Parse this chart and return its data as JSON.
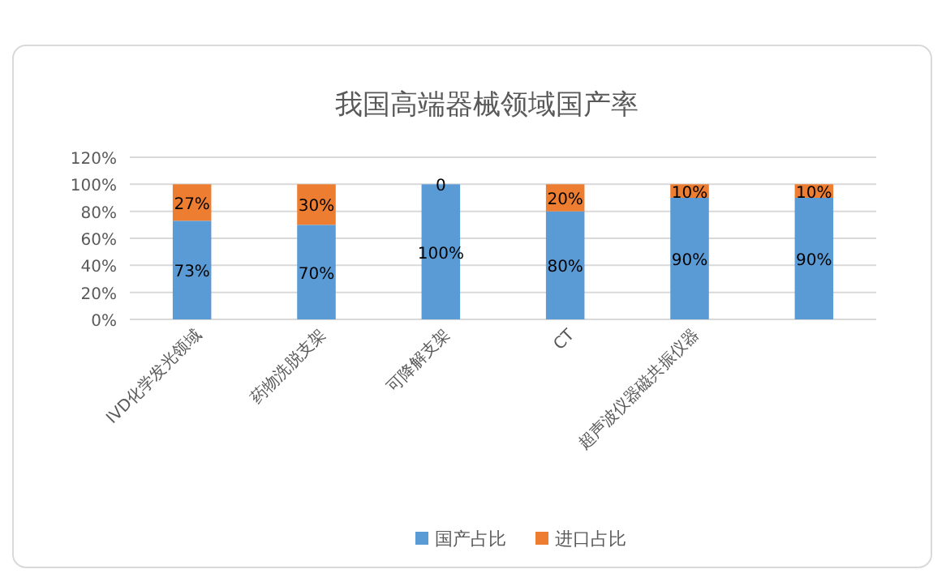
{
  "chart_data": {
    "type": "bar",
    "title": "我国高端器械领域国产率",
    "stacked": true,
    "categories": [
      "IVD化学发光领域",
      "药物洗脱支架",
      "可降解支架",
      "CT",
      "超声波仪器磁共振仪器",
      null
    ],
    "series": [
      {
        "name": "国产占比",
        "color": "#5b9bd5",
        "values": [
          73,
          70,
          100,
          80,
          90,
          90
        ],
        "value_labels": [
          "73%",
          "70%",
          "100%",
          "80%",
          "90%",
          "90%"
        ]
      },
      {
        "name": "进口占比",
        "color": "#ed7d31",
        "values": [
          27,
          30,
          0,
          20,
          10,
          10
        ],
        "value_labels": [
          "27%",
          "30%",
          "0",
          "20%",
          "10%",
          "10%"
        ]
      }
    ],
    "ylim": [
      0,
      120
    ],
    "yticks": [
      {
        "value": 0,
        "label": "0%"
      },
      {
        "value": 20,
        "label": "20%"
      },
      {
        "value": 40,
        "label": "40%"
      },
      {
        "value": 60,
        "label": "60%"
      },
      {
        "value": 80,
        "label": "80%"
      },
      {
        "value": 100,
        "label": "100%"
      },
      {
        "value": 120,
        "label": "120%"
      }
    ],
    "grid": "y",
    "legend": "bottom"
  }
}
